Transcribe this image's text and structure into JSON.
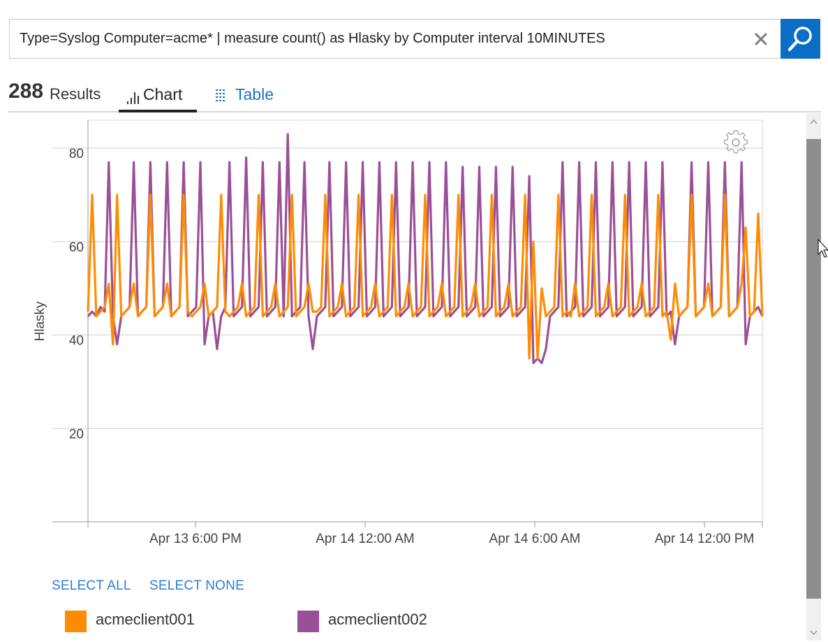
{
  "search": {
    "query": "Type=Syslog Computer=acme* | measure count() as Hlasky by Computer interval 10MINUTES"
  },
  "results": {
    "count": "288",
    "label": "Results"
  },
  "tabs": [
    {
      "label": "Chart",
      "active": true
    },
    {
      "label": "Table",
      "active": false
    }
  ],
  "legend_controls": {
    "select_all": "SELECT ALL",
    "select_none": "SELECT NONE"
  },
  "colors": {
    "accent": "#0a6ec7",
    "series1": "#ff8c00",
    "series2": "#9b4f96"
  },
  "chart_data": {
    "type": "line",
    "ylabel": "Hlasky",
    "xlabel": "",
    "ylim": [
      0,
      86
    ],
    "yticks": [
      20,
      40,
      60,
      80
    ],
    "xticks": [
      "Apr 13 6:00 PM",
      "Apr 14 12:00 AM",
      "Apr 14 6:00 AM",
      "Apr 14 12:00 PM"
    ],
    "grid": true,
    "series": [
      {
        "name": "acmeclient001",
        "color": "#ff8c00",
        "values": [
          45,
          70,
          44,
          45,
          46,
          51,
          38,
          70,
          44,
          45,
          46,
          51,
          44,
          45,
          46,
          70,
          44,
          45,
          46,
          51,
          44,
          45,
          46,
          70,
          45,
          44,
          45,
          46,
          51,
          44,
          45,
          46,
          70,
          45,
          44,
          45,
          46,
          51,
          44,
          45,
          46,
          70,
          44,
          45,
          46,
          51,
          44,
          45,
          46,
          70,
          44,
          45,
          46,
          51,
          45,
          45,
          46,
          70,
          44,
          45,
          46,
          51,
          44,
          45,
          46,
          70,
          44,
          45,
          46,
          51,
          44,
          45,
          46,
          70,
          44,
          45,
          46,
          51,
          44,
          45,
          46,
          70,
          44,
          45,
          46,
          51,
          44,
          45,
          46,
          70,
          44,
          45,
          46,
          51,
          44,
          45,
          46,
          70,
          44,
          45,
          46,
          51,
          44,
          45,
          46,
          70,
          35,
          60,
          35,
          50,
          44,
          45,
          46,
          70,
          44,
          45,
          44,
          51,
          44,
          45,
          46,
          70,
          44,
          45,
          46,
          51,
          44,
          45,
          46,
          70,
          44,
          45,
          46,
          51,
          44,
          45,
          46,
          70,
          44,
          45,
          39,
          51,
          44,
          45,
          46,
          70,
          44,
          45,
          46,
          51,
          44,
          45,
          46,
          70,
          44,
          45,
          46,
          51,
          63,
          44,
          45,
          66,
          44
        ]
      },
      {
        "name": "acmeclient002",
        "color": "#9b4f96",
        "values": [
          44,
          45,
          44,
          46,
          45,
          77,
          44,
          38,
          44,
          45,
          46,
          77,
          44,
          45,
          46,
          77,
          44,
          45,
          46,
          77,
          44,
          45,
          46,
          77,
          44,
          45,
          46,
          77,
          38,
          44,
          45,
          37,
          44,
          46,
          77,
          44,
          45,
          46,
          78,
          44,
          45,
          46,
          77,
          44,
          45,
          46,
          77,
          44,
          83,
          44,
          45,
          46,
          77,
          44,
          37,
          44,
          45,
          46,
          77,
          44,
          45,
          46,
          77,
          44,
          45,
          46,
          77,
          44,
          45,
          46,
          77,
          44,
          45,
          46,
          77,
          44,
          45,
          46,
          77,
          44,
          45,
          46,
          77,
          44,
          45,
          46,
          77,
          44,
          45,
          46,
          76,
          44,
          45,
          46,
          76,
          44,
          45,
          46,
          76,
          44,
          45,
          46,
          76,
          44,
          45,
          46,
          74,
          34,
          35,
          34,
          37,
          44,
          45,
          46,
          77,
          44,
          45,
          46,
          77,
          44,
          45,
          46,
          77,
          44,
          45,
          46,
          77,
          44,
          45,
          46,
          77,
          44,
          45,
          46,
          77,
          44,
          45,
          46,
          77,
          44,
          45,
          38,
          44,
          45,
          46,
          77,
          44,
          45,
          46,
          77,
          44,
          45,
          46,
          77,
          44,
          45,
          46,
          77,
          38,
          44,
          45,
          46,
          44
        ]
      }
    ]
  }
}
